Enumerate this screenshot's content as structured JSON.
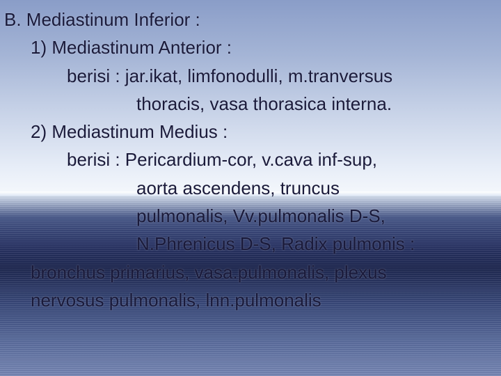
{
  "slide": {
    "text_color": "#1a1a3a",
    "font_family": "Verdana",
    "font_size_pt": 20,
    "background": {
      "type": "sky-sea-photo",
      "sky_gradient": [
        "#8a9dc8",
        "#a5b5d6",
        "#c8d3e8",
        "#e8eef8",
        "#f5f8fc"
      ],
      "sea_gradient": [
        "#d8e2f0",
        "#4a5a8a",
        "#2a3565",
        "#1f2850",
        "#3a4a7a",
        "#5a6c9c",
        "#7888b5"
      ],
      "horizon_position_pct": 52
    },
    "lines": [
      {
        "indent": 0,
        "text": "B. Mediastinum Inferior :"
      },
      {
        "indent": 1,
        "text": "1) Mediastinum Anterior :"
      },
      {
        "indent": 2,
        "text": "berisi : jar.ikat, limfonodulli, m.tranversus"
      },
      {
        "indent": 3,
        "text": "thoracis, vasa thorasica interna."
      },
      {
        "indent": 1,
        "text": "2) Mediastinum Medius :"
      },
      {
        "indent": 2,
        "text": "berisi : Pericardium-cor, v.cava inf-sup,"
      },
      {
        "indent": 3,
        "text": "aorta ascendens, truncus"
      },
      {
        "indent": 3,
        "text": "pulmonalis, Vv.pulmonalis D-S,"
      },
      {
        "indent": 3,
        "text": "N.Phrenicus D-S, Radix pulmonis :"
      },
      {
        "indent": 1,
        "text": "bronchus primarius, vasa.pulmonalis, plexus"
      },
      {
        "indent": 1,
        "text": "nervosus pulmonalis, lnn.pulmonalis"
      }
    ]
  }
}
